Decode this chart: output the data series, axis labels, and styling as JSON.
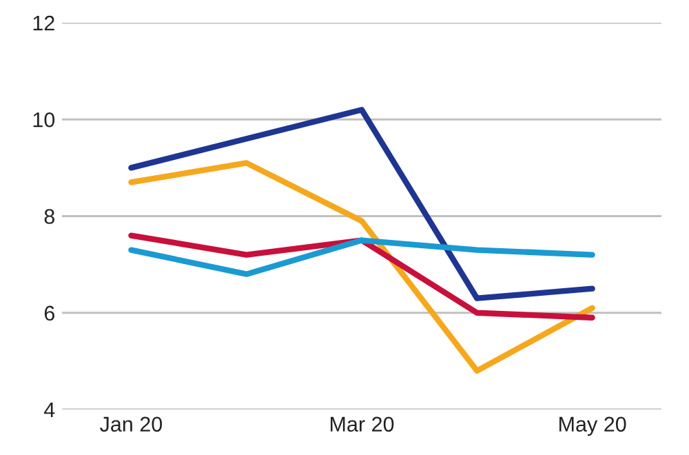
{
  "chart_data": {
    "type": "line",
    "categories": [
      "Jan 20",
      null,
      "Mar 20",
      null,
      "May 20"
    ],
    "series": [
      {
        "color": "#1f3591",
        "values": [
          9.0,
          9.6,
          10.2,
          6.3,
          6.5
        ]
      },
      {
        "color": "#f5a81e",
        "values": [
          8.7,
          9.1,
          7.9,
          4.8,
          6.1
        ]
      },
      {
        "color": "#c8103c",
        "values": [
          7.6,
          7.2,
          7.5,
          6.0,
          5.9
        ]
      },
      {
        "color": "#1b9ad2",
        "values": [
          7.3,
          6.8,
          7.5,
          7.3,
          7.2
        ]
      }
    ],
    "ylim": [
      4,
      12
    ],
    "yticks": [
      4,
      6,
      8,
      10,
      12
    ],
    "grid": "y",
    "marker": "none",
    "line_style": "solid"
  }
}
